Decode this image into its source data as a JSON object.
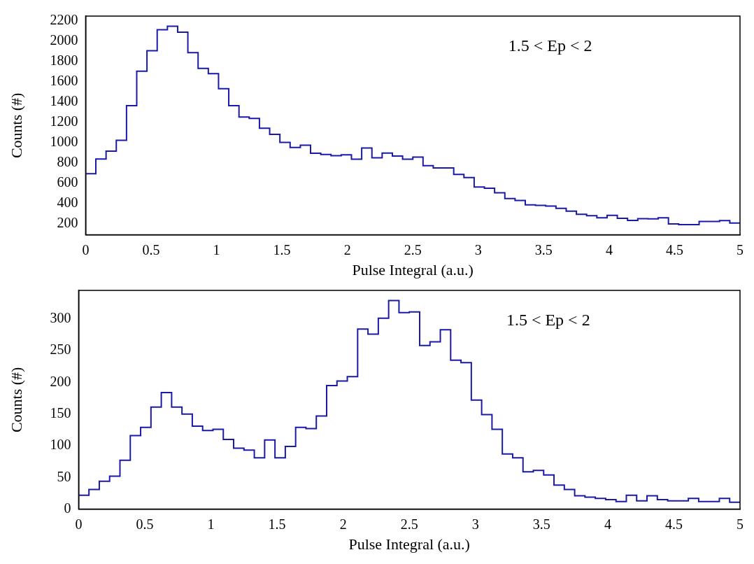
{
  "chart_data": [
    {
      "type": "histogram",
      "xlabel": "Pulse Integral (a.u.)",
      "ylabel": "Counts (#)",
      "annotations": [
        "1.5 < Ep < 2"
      ],
      "color": "#1a1aa6",
      "grid": false,
      "legend": false,
      "bins": [
        0,
        0.078125,
        0.15625,
        0.234375,
        0.3125,
        0.390625,
        0.46875,
        0.546875,
        0.625,
        0.703125,
        0.78125,
        0.859375,
        0.9375,
        1.015625,
        1.09375,
        1.171875,
        1.25,
        1.328125,
        1.40625,
        1.484375,
        1.5625,
        1.640625,
        1.71875,
        1.796875,
        1.875,
        1.953125,
        2.03125,
        2.109375,
        2.1875,
        2.265625,
        2.34375,
        2.421875,
        2.5,
        2.578125,
        2.65625,
        2.734375,
        2.8125,
        2.890625,
        2.96875,
        3.046875,
        3.125,
        3.203125,
        3.28125,
        3.359375,
        3.4375,
        3.515625,
        3.59375,
        3.671875,
        3.75,
        3.828125,
        3.90625,
        3.984375,
        4.0625,
        4.140625,
        4.21875,
        4.296875,
        4.375,
        4.453125,
        4.53125,
        4.609375,
        4.6875,
        4.765625,
        4.84375,
        4.921875,
        5
      ],
      "values": [
        695,
        841,
        918,
        1025,
        1366,
        1707,
        1909,
        2116,
        2150,
        2091,
        1889,
        1734,
        1682,
        1534,
        1366,
        1255,
        1241,
        1145,
        1084,
        1005,
        955,
        977,
        898,
        886,
        873,
        882,
        839,
        950,
        852,
        900,
        870,
        839,
        859,
        775,
        752,
        752,
        689,
        657,
        564,
        552,
        507,
        450,
        432,
        389,
        384,
        377,
        355,
        327,
        295,
        282,
        261,
        286,
        255,
        236,
        252,
        250,
        261,
        200,
        193,
        193,
        225,
        225,
        234,
        209
      ],
      "xlim": [
        0,
        5
      ],
      "xticks": [
        0,
        0.5,
        1,
        1.5,
        2,
        2.5,
        3,
        3.5,
        4,
        4.5,
        5
      ],
      "ylim": [
        93,
        2250
      ],
      "yticks": [
        200,
        400,
        600,
        800,
        1000,
        1200,
        1400,
        1600,
        1800,
        2000,
        2200
      ]
    },
    {
      "type": "histogram",
      "xlabel": "Pulse Integral (a.u.)",
      "ylabel": "Counts (#)",
      "annotations": [
        "1.5 < Ep < 2"
      ],
      "color": "#1a1aa6",
      "grid": false,
      "legend": false,
      "bins": [
        0,
        0.078125,
        0.15625,
        0.234375,
        0.3125,
        0.390625,
        0.46875,
        0.546875,
        0.625,
        0.703125,
        0.78125,
        0.859375,
        0.9375,
        1.015625,
        1.09375,
        1.171875,
        1.25,
        1.328125,
        1.40625,
        1.484375,
        1.5625,
        1.640625,
        1.71875,
        1.796875,
        1.875,
        1.953125,
        2.03125,
        2.109375,
        2.1875,
        2.265625,
        2.34375,
        2.421875,
        2.5,
        2.578125,
        2.65625,
        2.734375,
        2.8125,
        2.890625,
        2.96875,
        3.046875,
        3.125,
        3.203125,
        3.28125,
        3.359375,
        3.4375,
        3.515625,
        3.59375,
        3.671875,
        3.75,
        3.828125,
        3.90625,
        3.984375,
        4.0625,
        4.140625,
        4.21875,
        4.296875,
        4.375,
        4.453125,
        4.53125,
        4.609375,
        4.6875,
        4.765625,
        4.84375,
        4.921875,
        5
      ],
      "values": [
        22,
        31,
        44,
        52,
        77,
        116,
        129,
        161,
        184,
        161,
        150,
        131,
        124,
        126,
        110,
        96,
        93,
        81,
        109,
        81,
        99,
        129,
        127,
        147,
        195,
        202,
        209,
        284,
        276,
        301,
        329,
        310,
        311,
        258,
        264,
        283,
        235,
        231,
        172,
        149,
        126,
        87,
        81,
        59,
        61,
        54,
        38,
        31,
        21,
        19,
        17,
        15,
        12,
        22,
        13,
        21,
        15,
        13,
        13,
        17,
        12,
        12,
        17,
        11
      ],
      "xlim": [
        0,
        5
      ],
      "xticks": [
        0,
        0.5,
        1,
        1.5,
        2,
        2.5,
        3,
        3.5,
        4,
        4.5,
        5
      ],
      "ylim": [
        0,
        345
      ],
      "yticks": [
        0,
        50,
        100,
        150,
        200,
        250,
        300
      ]
    }
  ]
}
